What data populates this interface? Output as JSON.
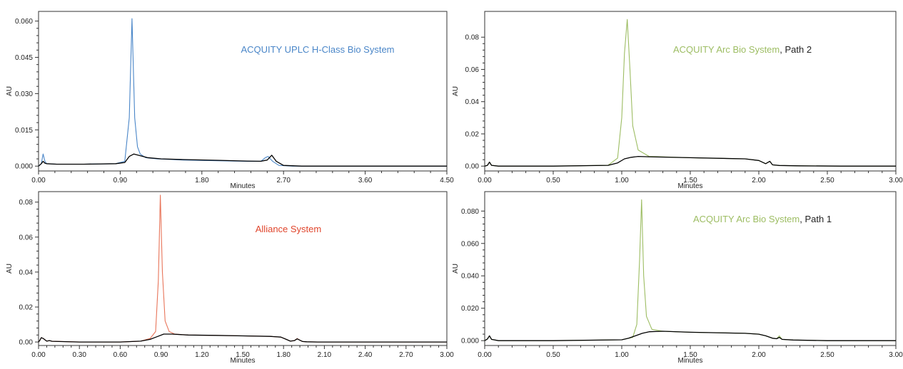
{
  "chart_data": [
    {
      "type": "line",
      "title_parts": [
        {
          "text": "ACQUITY UPLC H-Class Bio System",
          "color": "#4a86c8"
        }
      ],
      "xlabel": "Minutes",
      "ylabel": "AU",
      "xlim": [
        0,
        4.5
      ],
      "ylim": [
        -0.002,
        0.064
      ],
      "xticks": [
        "0.00",
        "0.90",
        "1.80",
        "2.70",
        "3.60",
        "4.50"
      ],
      "yticks": [
        "0.000",
        "0.015",
        "0.030",
        "0.045",
        "0.060"
      ],
      "grid": false,
      "series": [
        {
          "color": "#4a86c8",
          "x": [
            0,
            0.03,
            0.05,
            0.07,
            0.09,
            0.2,
            0.5,
            0.85,
            0.95,
            1.0,
            1.03,
            1.06,
            1.09,
            1.12,
            1.18,
            1.3,
            1.6,
            2.0,
            2.3,
            2.45,
            2.5,
            2.53,
            2.58,
            2.65,
            2.8,
            3.2,
            3.6,
            4.0,
            4.5
          ],
          "y": [
            0,
            0.001,
            0.005,
            0.002,
            0.001,
            0.0008,
            0.0008,
            0.001,
            0.002,
            0.02,
            0.061,
            0.02,
            0.008,
            0.005,
            0.0035,
            0.003,
            0.0025,
            0.0022,
            0.002,
            0.002,
            0.0035,
            0.004,
            0.002,
            0.0003,
            0,
            0,
            0,
            0,
            0
          ]
        },
        {
          "color": "#000000",
          "x": [
            0,
            0.03,
            0.05,
            0.07,
            0.09,
            0.2,
            0.5,
            0.85,
            0.95,
            1.0,
            1.05,
            1.1,
            1.2,
            1.35,
            1.6,
            2.0,
            2.3,
            2.45,
            2.52,
            2.57,
            2.62,
            2.7,
            2.9,
            3.6,
            4.5
          ],
          "y": [
            0,
            0.001,
            0.002,
            0.0012,
            0.001,
            0.0008,
            0.0008,
            0.001,
            0.0015,
            0.004,
            0.005,
            0.0045,
            0.0035,
            0.003,
            0.0027,
            0.0024,
            0.0021,
            0.002,
            0.0025,
            0.0045,
            0.002,
            0.0003,
            0,
            0,
            0
          ]
        }
      ]
    },
    {
      "type": "line",
      "title_parts": [
        {
          "text": "ACQUITY Arc Bio System",
          "color": "#9dbd63"
        },
        {
          "text": ", Path 2",
          "color": "#222222"
        }
      ],
      "xlabel": "Minutes",
      "ylabel": "AU",
      "xlim": [
        0,
        3.0
      ],
      "ylim": [
        -0.003,
        0.096
      ],
      "xticks": [
        "0.00",
        "0.50",
        "1.00",
        "1.50",
        "2.00",
        "2.50",
        "3.00"
      ],
      "yticks": [
        "0.00",
        "0.02",
        "0.04",
        "0.06",
        "0.08"
      ],
      "grid": false,
      "series": [
        {
          "color": "#9dbd63",
          "x": [
            0,
            0.02,
            0.035,
            0.05,
            0.1,
            0.5,
            0.9,
            0.97,
            1.0,
            1.02,
            1.04,
            1.06,
            1.08,
            1.12,
            1.2,
            1.5,
            1.9,
            2.0,
            2.05,
            2.08,
            2.1,
            2.15,
            2.3,
            2.6,
            3.0
          ],
          "y": [
            0,
            0.0005,
            0.0025,
            0.0005,
            0,
            0,
            0.0005,
            0.005,
            0.03,
            0.07,
            0.091,
            0.06,
            0.025,
            0.01,
            0.006,
            0.0052,
            0.0045,
            0.0035,
            0.0015,
            0.003,
            0.0008,
            0.0004,
            0.0002,
            0,
            0
          ]
        },
        {
          "color": "#000000",
          "x": [
            0,
            0.02,
            0.035,
            0.05,
            0.1,
            0.5,
            0.9,
            0.97,
            1.02,
            1.07,
            1.12,
            1.2,
            1.5,
            1.9,
            2.0,
            2.05,
            2.08,
            2.1,
            2.15,
            2.3,
            2.6,
            3.0
          ],
          "y": [
            0,
            0.0005,
            0.0025,
            0.0005,
            0,
            0,
            0.0005,
            0.002,
            0.0045,
            0.0055,
            0.006,
            0.0058,
            0.0052,
            0.0045,
            0.0035,
            0.0015,
            0.003,
            0.0008,
            0.0004,
            0.0002,
            0,
            0
          ]
        }
      ]
    },
    {
      "type": "line",
      "title_parts": [
        {
          "text": "Alliance System",
          "color": "#e0452c"
        }
      ],
      "xlabel": "Minutes",
      "ylabel": "AU",
      "xlim": [
        0,
        3.0
      ],
      "ylim": [
        -0.002,
        0.086
      ],
      "xticks": [
        "0.00",
        "0.30",
        "0.60",
        "0.90",
        "1.20",
        "1.50",
        "1.80",
        "2.10",
        "2.40",
        "2.70",
        "3.00"
      ],
      "yticks": [
        "0.00",
        "0.02",
        "0.04",
        "0.06",
        "0.08"
      ],
      "grid": false,
      "series": [
        {
          "color": "#e8755a",
          "x": [
            0,
            0.01,
            0.02,
            0.035,
            0.06,
            0.08,
            0.1,
            0.3,
            0.6,
            0.75,
            0.82,
            0.86,
            0.88,
            0.895,
            0.91,
            0.93,
            0.96,
            1.0,
            1.1,
            1.3,
            1.5,
            1.7,
            1.78,
            1.82,
            1.85,
            1.88,
            1.9,
            1.92,
            1.94,
            1.97,
            2.05,
            2.3,
            2.6,
            3.0
          ],
          "y": [
            0,
            0.001,
            0.0025,
            0.002,
            0.0005,
            0.0008,
            0.0004,
            0,
            0,
            0.0005,
            0.002,
            0.006,
            0.035,
            0.084,
            0.04,
            0.012,
            0.006,
            0.0045,
            0.004,
            0.0038,
            0.0035,
            0.0032,
            0.0028,
            0.0015,
            0.0005,
            0.0008,
            0.002,
            0.001,
            0.0003,
            0.0001,
            0,
            0,
            0,
            0
          ]
        },
        {
          "color": "#000000",
          "x": [
            0,
            0.01,
            0.02,
            0.035,
            0.06,
            0.08,
            0.1,
            0.3,
            0.6,
            0.75,
            0.82,
            0.87,
            0.92,
            0.98,
            1.1,
            1.3,
            1.5,
            1.7,
            1.78,
            1.82,
            1.85,
            1.88,
            1.9,
            1.92,
            1.94,
            1.97,
            2.05,
            2.3,
            2.6,
            3.0
          ],
          "y": [
            0,
            0.001,
            0.0025,
            0.002,
            0.0005,
            0.0008,
            0.0004,
            0,
            0,
            0.0005,
            0.0015,
            0.003,
            0.0045,
            0.0045,
            0.004,
            0.0038,
            0.0035,
            0.0032,
            0.0028,
            0.0015,
            0.0005,
            0.0008,
            0.0018,
            0.001,
            0.0003,
            0.0001,
            0,
            0,
            0,
            0
          ]
        }
      ]
    },
    {
      "type": "line",
      "title_parts": [
        {
          "text": "ACQUITY Arc Bio System",
          "color": "#9dbd63"
        },
        {
          "text": ", Path 1",
          "color": "#222222"
        }
      ],
      "xlabel": "Minutes",
      "ylabel": "AU",
      "xlim": [
        0,
        3.0
      ],
      "ylim": [
        -0.003,
        0.092
      ],
      "xticks": [
        "0.00",
        "0.50",
        "1.00",
        "1.50",
        "2.00",
        "2.50",
        "3.00"
      ],
      "yticks": [
        "0.000",
        "0.020",
        "0.040",
        "0.060",
        "0.080"
      ],
      "grid": false,
      "series": [
        {
          "color": "#9dbd63",
          "x": [
            0,
            0.02,
            0.035,
            0.05,
            0.1,
            0.5,
            1.0,
            1.08,
            1.11,
            1.13,
            1.145,
            1.16,
            1.18,
            1.22,
            1.3,
            1.5,
            1.9,
            2.0,
            2.05,
            2.1,
            2.13,
            2.15,
            2.17,
            2.25,
            2.5,
            3.0
          ],
          "y": [
            0,
            0.001,
            0.003,
            0.0008,
            0,
            0,
            0.0005,
            0.002,
            0.01,
            0.05,
            0.087,
            0.04,
            0.015,
            0.007,
            0.0058,
            0.0052,
            0.0045,
            0.004,
            0.003,
            0.0015,
            0.0012,
            0.003,
            0.0008,
            0.0004,
            0,
            0
          ]
        },
        {
          "color": "#000000",
          "x": [
            0,
            0.02,
            0.035,
            0.05,
            0.1,
            0.5,
            1.0,
            1.05,
            1.1,
            1.15,
            1.2,
            1.3,
            1.5,
            1.9,
            2.0,
            2.05,
            2.1,
            2.13,
            2.15,
            2.17,
            2.25,
            2.5,
            3.0
          ],
          "y": [
            0,
            0.001,
            0.003,
            0.0008,
            0,
            0,
            0.0005,
            0.0015,
            0.003,
            0.0045,
            0.0055,
            0.0058,
            0.0052,
            0.0045,
            0.004,
            0.003,
            0.0015,
            0.0012,
            0.002,
            0.0008,
            0.0004,
            0,
            0
          ]
        }
      ]
    }
  ]
}
